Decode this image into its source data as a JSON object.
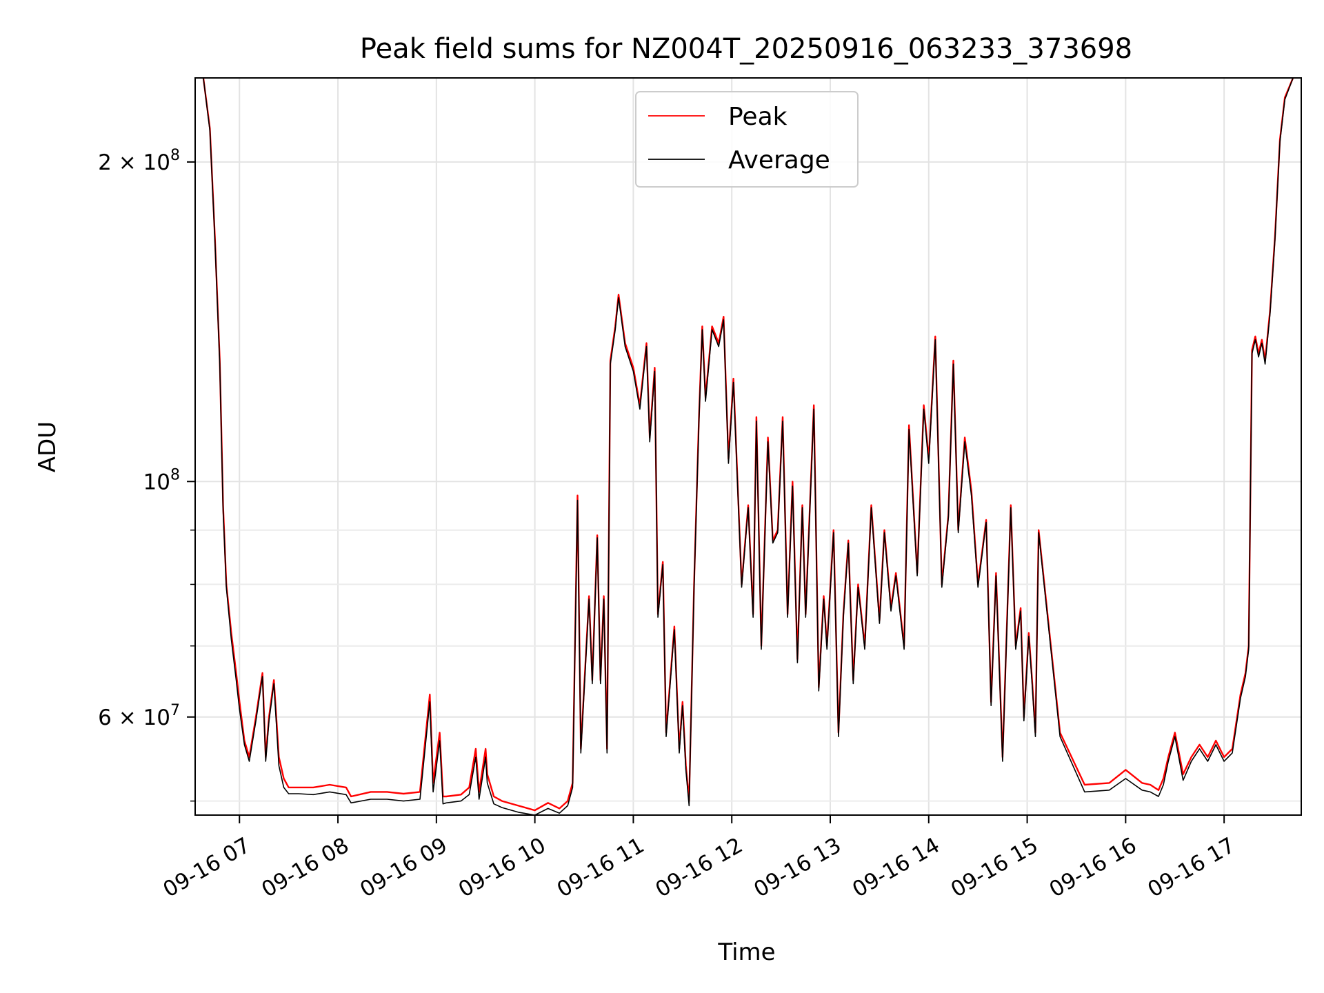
{
  "chart_data": {
    "type": "line",
    "title": "Peak field sums for NZ004T_20250916_063233_373698",
    "xlabel": "Time",
    "ylabel": "ADU",
    "yscale": "log",
    "grid": true,
    "legend_placement": "upper-center",
    "xlim": [
      "2025-09-16 06:33",
      "2025-09-16 17:47"
    ],
    "ylim": [
      48500000,
      240000000
    ],
    "x_ticks": [
      {
        "value": "2025-09-16 07:00",
        "label": "09-16 07"
      },
      {
        "value": "2025-09-16 08:00",
        "label": "09-16 08"
      },
      {
        "value": "2025-09-16 09:00",
        "label": "09-16 09"
      },
      {
        "value": "2025-09-16 10:00",
        "label": "09-16 10"
      },
      {
        "value": "2025-09-16 11:00",
        "label": "09-16 11"
      },
      {
        "value": "2025-09-16 12:00",
        "label": "09-16 12"
      },
      {
        "value": "2025-09-16 13:00",
        "label": "09-16 13"
      },
      {
        "value": "2025-09-16 14:00",
        "label": "09-16 14"
      },
      {
        "value": "2025-09-16 15:00",
        "label": "09-16 15"
      },
      {
        "value": "2025-09-16 16:00",
        "label": "09-16 16"
      },
      {
        "value": "2025-09-16 17:00",
        "label": "09-16 17"
      }
    ],
    "y_major_ticks": [
      {
        "value": 60000000,
        "mantissa": "6",
        "exponent": "7"
      },
      {
        "value": 100000000,
        "mantissa": "",
        "exponent": "8"
      },
      {
        "value": 200000000,
        "mantissa": "2",
        "exponent": "8"
      }
    ],
    "y_minor_ticks": [
      50000000,
      70000000,
      80000000,
      90000000
    ],
    "x": [
      "2025-09-16 06:38",
      "2025-09-16 06:42",
      "2025-09-16 06:45",
      "2025-09-16 06:48",
      "2025-09-16 06:50",
      "2025-09-16 06:52",
      "2025-09-16 06:55",
      "2025-09-16 06:58",
      "2025-09-16 07:00",
      "2025-09-16 07:03",
      "2025-09-16 07:06",
      "2025-09-16 07:10",
      "2025-09-16 07:14",
      "2025-09-16 07:16",
      "2025-09-16 07:18",
      "2025-09-16 07:21",
      "2025-09-16 07:24",
      "2025-09-16 07:27",
      "2025-09-16 07:30",
      "2025-09-16 07:36",
      "2025-09-16 07:45",
      "2025-09-16 07:55",
      "2025-09-16 08:05",
      "2025-09-16 08:08",
      "2025-09-16 08:20",
      "2025-09-16 08:30",
      "2025-09-16 08:40",
      "2025-09-16 08:50",
      "2025-09-16 08:56",
      "2025-09-16 08:58",
      "2025-09-16 09:02",
      "2025-09-16 09:04",
      "2025-09-16 09:06",
      "2025-09-16 09:15",
      "2025-09-16 09:20",
      "2025-09-16 09:24",
      "2025-09-16 09:26",
      "2025-09-16 09:30",
      "2025-09-16 09:31",
      "2025-09-16 09:35",
      "2025-09-16 09:40",
      "2025-09-16 09:50",
      "2025-09-16 10:00",
      "2025-09-16 10:08",
      "2025-09-16 10:15",
      "2025-09-16 10:20",
      "2025-09-16 10:23",
      "2025-09-16 10:26",
      "2025-09-16 10:28",
      "2025-09-16 10:33",
      "2025-09-16 10:35",
      "2025-09-16 10:38",
      "2025-09-16 10:40",
      "2025-09-16 10:42",
      "2025-09-16 10:44",
      "2025-09-16 10:46",
      "2025-09-16 10:49",
      "2025-09-16 10:51",
      "2025-09-16 10:55",
      "2025-09-16 11:00",
      "2025-09-16 11:04",
      "2025-09-16 11:08",
      "2025-09-16 11:10",
      "2025-09-16 11:13",
      "2025-09-16 11:15",
      "2025-09-16 11:18",
      "2025-09-16 11:20",
      "2025-09-16 11:25",
      "2025-09-16 11:28",
      "2025-09-16 11:30",
      "2025-09-16 11:32",
      "2025-09-16 11:34",
      "2025-09-16 11:37",
      "2025-09-16 11:40",
      "2025-09-16 11:42",
      "2025-09-16 11:44",
      "2025-09-16 11:48",
      "2025-09-16 11:52",
      "2025-09-16 11:55",
      "2025-09-16 11:58",
      "2025-09-16 12:01",
      "2025-09-16 12:06",
      "2025-09-16 12:10",
      "2025-09-16 12:13",
      "2025-09-16 12:15",
      "2025-09-16 12:18",
      "2025-09-16 12:22",
      "2025-09-16 12:25",
      "2025-09-16 12:28",
      "2025-09-16 12:31",
      "2025-09-16 12:34",
      "2025-09-16 12:37",
      "2025-09-16 12:40",
      "2025-09-16 12:43",
      "2025-09-16 12:45",
      "2025-09-16 12:50",
      "2025-09-16 12:53",
      "2025-09-16 12:56",
      "2025-09-16 12:58",
      "2025-09-16 13:02",
      "2025-09-16 13:05",
      "2025-09-16 13:08",
      "2025-09-16 13:11",
      "2025-09-16 13:14",
      "2025-09-16 13:17",
      "2025-09-16 13:21",
      "2025-09-16 13:25",
      "2025-09-16 13:30",
      "2025-09-16 13:33",
      "2025-09-16 13:37",
      "2025-09-16 13:40",
      "2025-09-16 13:45",
      "2025-09-16 13:48",
      "2025-09-16 13:53",
      "2025-09-16 13:57",
      "2025-09-16 14:00",
      "2025-09-16 14:04",
      "2025-09-16 14:08",
      "2025-09-16 14:12",
      "2025-09-16 14:15",
      "2025-09-16 14:18",
      "2025-09-16 14:22",
      "2025-09-16 14:26",
      "2025-09-16 14:30",
      "2025-09-16 14:35",
      "2025-09-16 14:38",
      "2025-09-16 14:41",
      "2025-09-16 14:45",
      "2025-09-16 14:50",
      "2025-09-16 14:53",
      "2025-09-16 14:56",
      "2025-09-16 14:58",
      "2025-09-16 15:01",
      "2025-09-16 15:03",
      "2025-09-16 15:05",
      "2025-09-16 15:07",
      "2025-09-16 15:20",
      "2025-09-16 15:35",
      "2025-09-16 15:50",
      "2025-09-16 16:00",
      "2025-09-16 16:10",
      "2025-09-16 16:15",
      "2025-09-16 16:20",
      "2025-09-16 16:23",
      "2025-09-16 16:26",
      "2025-09-16 16:30",
      "2025-09-16 16:35",
      "2025-09-16 16:40",
      "2025-09-16 16:45",
      "2025-09-16 16:50",
      "2025-09-16 16:55",
      "2025-09-16 17:00",
      "2025-09-16 17:05",
      "2025-09-16 17:10",
      "2025-09-16 17:13",
      "2025-09-16 17:15",
      "2025-09-16 17:17",
      "2025-09-16 17:19",
      "2025-09-16 17:21",
      "2025-09-16 17:23",
      "2025-09-16 17:25",
      "2025-09-16 17:28",
      "2025-09-16 17:31",
      "2025-09-16 17:34",
      "2025-09-16 17:37",
      "2025-09-16 17:42"
    ],
    "series": [
      {
        "name": "Peak",
        "color": "#ff0000",
        "values": [
          240000000,
          215000000,
          170000000,
          130000000,
          95000000,
          80000000,
          72000000,
          66000000,
          62000000,
          57000000,
          55000000,
          60000000,
          66000000,
          55000000,
          60000000,
          65000000,
          55000000,
          52500000,
          51500000,
          51500000,
          51500000,
          51800000,
          51500000,
          50500000,
          51000000,
          51000000,
          50800000,
          51000000,
          63000000,
          52000000,
          58000000,
          50500000,
          50500000,
          50700000,
          51500000,
          56000000,
          51000000,
          56000000,
          53000000,
          50500000,
          50000000,
          49500000,
          49000000,
          49800000,
          49200000,
          50000000,
          52000000,
          97000000,
          56000000,
          78000000,
          65000000,
          89000000,
          65000000,
          78000000,
          56000000,
          130000000,
          140000000,
          150000000,
          135000000,
          128000000,
          118000000,
          135000000,
          110000000,
          128000000,
          75000000,
          84000000,
          58000000,
          73000000,
          56000000,
          62000000,
          54000000,
          50000000,
          80000000,
          115000000,
          140000000,
          120000000,
          140000000,
          135000000,
          143000000,
          105000000,
          125000000,
          80000000,
          95000000,
          75000000,
          115000000,
          70000000,
          110000000,
          88000000,
          90000000,
          115000000,
          75000000,
          100000000,
          68000000,
          95000000,
          75000000,
          118000000,
          64000000,
          78000000,
          70000000,
          90000000,
          58000000,
          75000000,
          88000000,
          65000000,
          80000000,
          70000000,
          95000000,
          74000000,
          90000000,
          76000000,
          82000000,
          70000000,
          113000000,
          82000000,
          118000000,
          105000000,
          137000000,
          80000000,
          93000000,
          130000000,
          90000000,
          110000000,
          98000000,
          80000000,
          92000000,
          62000000,
          82000000,
          55000000,
          95000000,
          70000000,
          76000000,
          60000000,
          72000000,
          65000000,
          58000000,
          90000000,
          58000000,
          51800000,
          52000000,
          53500000,
          52000000,
          51800000,
          51200000,
          52500000,
          55000000,
          58000000,
          53000000,
          55000000,
          56500000,
          55000000,
          57000000,
          55000000,
          56000000,
          63000000,
          66000000,
          70000000,
          133000000,
          137000000,
          132000000,
          136000000,
          130000000,
          145000000,
          170000000,
          210000000,
          230000000,
          240000000
        ]
      },
      {
        "name": "Average",
        "color": "#000000",
        "values": [
          240000000,
          214000000,
          169000000,
          129000000,
          94000000,
          79500000,
          71000000,
          65000000,
          61000000,
          56500000,
          54500000,
          59500000,
          65500000,
          54500000,
          59500000,
          64500000,
          54000000,
          51500000,
          50800000,
          50800000,
          50700000,
          51000000,
          50700000,
          49800000,
          50200000,
          50200000,
          50000000,
          50200000,
          62000000,
          51000000,
          57000000,
          49700000,
          49800000,
          50000000,
          50700000,
          55000000,
          50200000,
          55000000,
          52000000,
          49700000,
          49300000,
          48800000,
          48500000,
          49200000,
          48700000,
          49500000,
          51500000,
          96000000,
          55500000,
          77500000,
          64500000,
          88500000,
          64500000,
          77500000,
          55500000,
          129000000,
          139000000,
          149000000,
          134000000,
          127000000,
          117000000,
          134000000,
          109000000,
          127000000,
          74500000,
          83500000,
          57500000,
          72500000,
          55500000,
          61500000,
          53500000,
          49500000,
          79500000,
          114000000,
          139000000,
          119000000,
          139000000,
          134000000,
          142000000,
          104000000,
          124000000,
          79500000,
          94500000,
          74500000,
          114000000,
          69500000,
          109000000,
          87500000,
          89500000,
          114000000,
          74500000,
          99000000,
          67500000,
          94500000,
          74500000,
          117000000,
          63500000,
          77500000,
          69500000,
          89500000,
          57500000,
          74500000,
          87500000,
          64500000,
          79500000,
          69500000,
          94500000,
          73500000,
          89500000,
          75500000,
          81500000,
          69500000,
          112000000,
          81500000,
          117000000,
          104000000,
          136000000,
          79500000,
          92500000,
          129000000,
          89500000,
          109000000,
          97000000,
          79500000,
          91500000,
          61500000,
          81500000,
          54500000,
          94500000,
          69500000,
          75500000,
          59500000,
          71500000,
          64500000,
          57500000,
          89500000,
          57500000,
          51000000,
          51200000,
          52500000,
          51200000,
          51000000,
          50500000,
          51800000,
          54500000,
          57500000,
          52300000,
          54500000,
          56000000,
          54500000,
          56500000,
          54500000,
          55500000,
          62500000,
          65500000,
          69500000,
          132000000,
          136000000,
          131000000,
          135000000,
          129000000,
          144000000,
          169000000,
          209000000,
          229000000,
          240000000
        ]
      }
    ]
  }
}
